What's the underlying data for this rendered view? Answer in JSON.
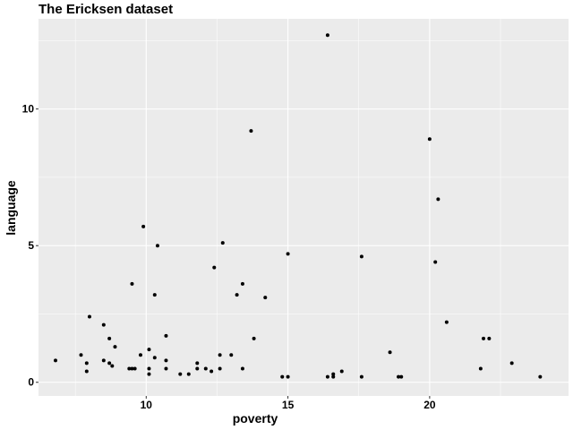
{
  "chart_data": {
    "type": "scatter",
    "title": "The Ericksen dataset",
    "xlabel": "poverty",
    "ylabel": "language",
    "xlim": [
      6.2,
      24.9
    ],
    "ylim": [
      -0.5,
      13.3
    ],
    "xticks": [
      10,
      15,
      20
    ],
    "yticks": [
      0,
      5,
      10
    ],
    "xminor": [
      7.5,
      12.5,
      17.5,
      22.5
    ],
    "yminor": [
      2.5,
      7.5,
      12.5
    ],
    "grid": true,
    "panel_color": "#ebebeb",
    "point_color": "#000000",
    "points": [
      {
        "x": 6.8,
        "y": 0.8
      },
      {
        "x": 7.7,
        "y": 1.0
      },
      {
        "x": 7.9,
        "y": 0.7
      },
      {
        "x": 7.9,
        "y": 0.4
      },
      {
        "x": 8.0,
        "y": 2.4
      },
      {
        "x": 8.5,
        "y": 2.1
      },
      {
        "x": 8.5,
        "y": 0.8
      },
      {
        "x": 8.7,
        "y": 1.6
      },
      {
        "x": 8.7,
        "y": 0.7
      },
      {
        "x": 8.8,
        "y": 0.6
      },
      {
        "x": 8.9,
        "y": 1.3
      },
      {
        "x": 9.4,
        "y": 0.5
      },
      {
        "x": 9.5,
        "y": 0.5
      },
      {
        "x": 9.5,
        "y": 3.6
      },
      {
        "x": 9.6,
        "y": 0.5
      },
      {
        "x": 9.8,
        "y": 1.0
      },
      {
        "x": 9.9,
        "y": 5.7
      },
      {
        "x": 10.1,
        "y": 0.5
      },
      {
        "x": 10.1,
        "y": 1.2
      },
      {
        "x": 10.1,
        "y": 0.3
      },
      {
        "x": 10.3,
        "y": 3.2
      },
      {
        "x": 10.3,
        "y": 0.9
      },
      {
        "x": 10.4,
        "y": 5.0
      },
      {
        "x": 10.7,
        "y": 1.7
      },
      {
        "x": 10.7,
        "y": 0.8
      },
      {
        "x": 10.7,
        "y": 0.5
      },
      {
        "x": 11.2,
        "y": 0.3
      },
      {
        "x": 11.5,
        "y": 0.3
      },
      {
        "x": 11.8,
        "y": 0.7
      },
      {
        "x": 11.8,
        "y": 0.5
      },
      {
        "x": 12.1,
        "y": 0.5
      },
      {
        "x": 12.3,
        "y": 0.4
      },
      {
        "x": 12.4,
        "y": 4.2
      },
      {
        "x": 12.6,
        "y": 1.0
      },
      {
        "x": 12.6,
        "y": 0.5
      },
      {
        "x": 12.7,
        "y": 5.1
      },
      {
        "x": 13.0,
        "y": 1.0
      },
      {
        "x": 13.2,
        "y": 3.2
      },
      {
        "x": 13.4,
        "y": 3.6
      },
      {
        "x": 13.4,
        "y": 0.5
      },
      {
        "x": 13.7,
        "y": 9.2
      },
      {
        "x": 13.8,
        "y": 1.6
      },
      {
        "x": 14.2,
        "y": 3.1
      },
      {
        "x": 14.8,
        "y": 0.2
      },
      {
        "x": 15.0,
        "y": 4.7
      },
      {
        "x": 15.0,
        "y": 0.2
      },
      {
        "x": 16.4,
        "y": 12.7
      },
      {
        "x": 16.4,
        "y": 0.2
      },
      {
        "x": 16.6,
        "y": 0.3
      },
      {
        "x": 16.6,
        "y": 0.2
      },
      {
        "x": 16.9,
        "y": 0.4
      },
      {
        "x": 17.6,
        "y": 4.6
      },
      {
        "x": 17.6,
        "y": 0.2
      },
      {
        "x": 18.6,
        "y": 1.1
      },
      {
        "x": 18.9,
        "y": 0.2
      },
      {
        "x": 19.0,
        "y": 0.2
      },
      {
        "x": 20.0,
        "y": 8.9
      },
      {
        "x": 20.2,
        "y": 4.4
      },
      {
        "x": 20.3,
        "y": 6.7
      },
      {
        "x": 20.6,
        "y": 2.2
      },
      {
        "x": 21.8,
        "y": 0.5
      },
      {
        "x": 21.9,
        "y": 1.6
      },
      {
        "x": 22.1,
        "y": 1.6
      },
      {
        "x": 22.9,
        "y": 0.7
      },
      {
        "x": 23.9,
        "y": 0.2
      }
    ]
  }
}
